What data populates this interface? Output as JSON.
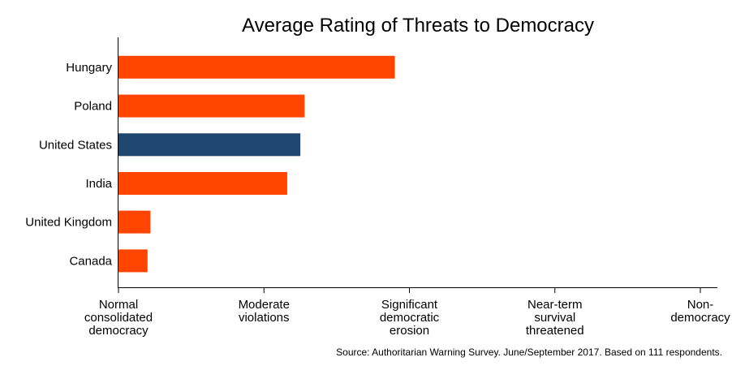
{
  "chart_data": {
    "type": "bar",
    "orientation": "horizontal",
    "title": "Average Rating of Threats to Democracy",
    "categories": [
      "Hungary",
      "Poland",
      "United States",
      "India",
      "United Kingdom",
      "Canada"
    ],
    "values": [
      1.9,
      1.28,
      1.25,
      1.16,
      0.22,
      0.2
    ],
    "highlight": "United States",
    "bar_color": "#ff4500",
    "highlight_color": "#1f466e",
    "xlim": [
      0,
      4
    ],
    "xticks": [
      {
        "value": 0,
        "lines": [
          "Normal",
          "consolidated",
          "democracy"
        ]
      },
      {
        "value": 1,
        "lines": [
          "Moderate",
          "violations"
        ]
      },
      {
        "value": 2,
        "lines": [
          "Significant",
          "democratic",
          "erosion"
        ]
      },
      {
        "value": 3,
        "lines": [
          "Near-term",
          "survival",
          "threatened"
        ]
      },
      {
        "value": 4,
        "lines": [
          "Non-",
          "democracy"
        ]
      }
    ],
    "xlabel": "",
    "ylabel": "",
    "source": "Source: Authoritarian Warning Survey. June/September 2017. Based on 111 respondents."
  }
}
